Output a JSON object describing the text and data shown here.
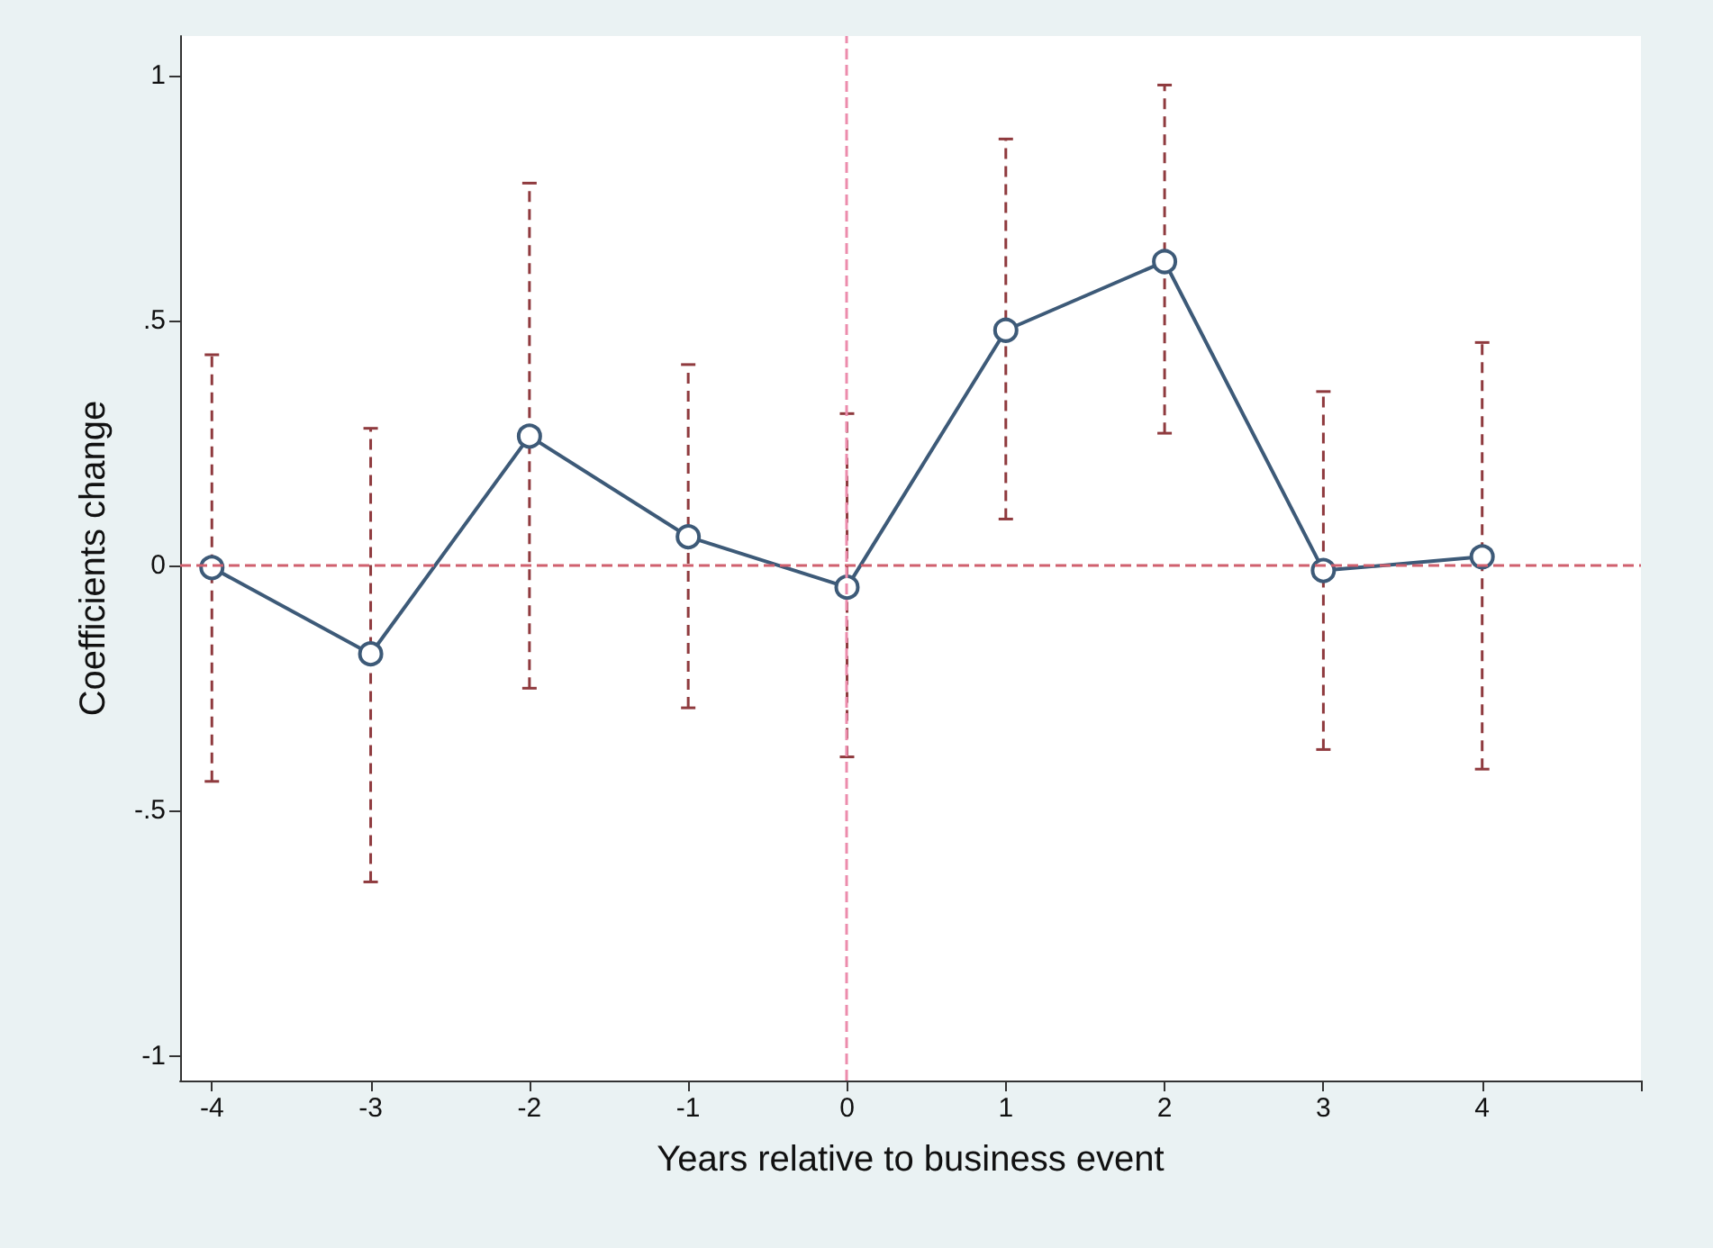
{
  "chart_data": {
    "type": "line",
    "xlabel": "Years relative to business event",
    "ylabel": "Coefficients change",
    "x": [
      -4,
      -3,
      -2,
      -1,
      0,
      1,
      2,
      3,
      4
    ],
    "series": [
      {
        "color": "#3d5a78",
        "values": [
          -0.004,
          -0.18,
          0.264,
          0.059,
          -0.044,
          0.48,
          0.62,
          -0.01,
          0.018
        ],
        "errors": [
          [
            -0.44,
            0.43
          ],
          [
            -0.645,
            0.28
          ],
          [
            -0.25,
            0.78
          ],
          [
            -0.29,
            0.41
          ],
          [
            -0.39,
            0.31
          ],
          [
            0.095,
            0.87
          ],
          [
            0.27,
            0.98
          ],
          [
            -0.375,
            0.355
          ],
          [
            -0.415,
            0.455
          ]
        ]
      }
    ],
    "xlim": [
      -4.2,
      5
    ],
    "xticks": [
      -4,
      -3,
      -2,
      -1,
      0,
      1,
      2,
      3,
      4,
      {
        "value": 5,
        "label": null
      }
    ],
    "ylim": [
      -1.05,
      1.08
    ],
    "yticks": [
      {
        "value": -1,
        "label": "-1"
      },
      {
        "value": -0.5,
        "label": "-.5"
      },
      {
        "value": 0,
        "label": "0"
      },
      {
        "value": 0.5,
        "label": ".5"
      },
      {
        "value": 1,
        "label": "1"
      }
    ],
    "ref_lines": [
      {
        "axis": "y",
        "value": 0,
        "color": "#d0606e",
        "line_style": "dashed"
      },
      {
        "axis": "x",
        "value": 0,
        "color": "#ec8cac",
        "line_style": "dashed"
      }
    ],
    "marker": "circle",
    "line_style": "solid",
    "grid": false
  }
}
